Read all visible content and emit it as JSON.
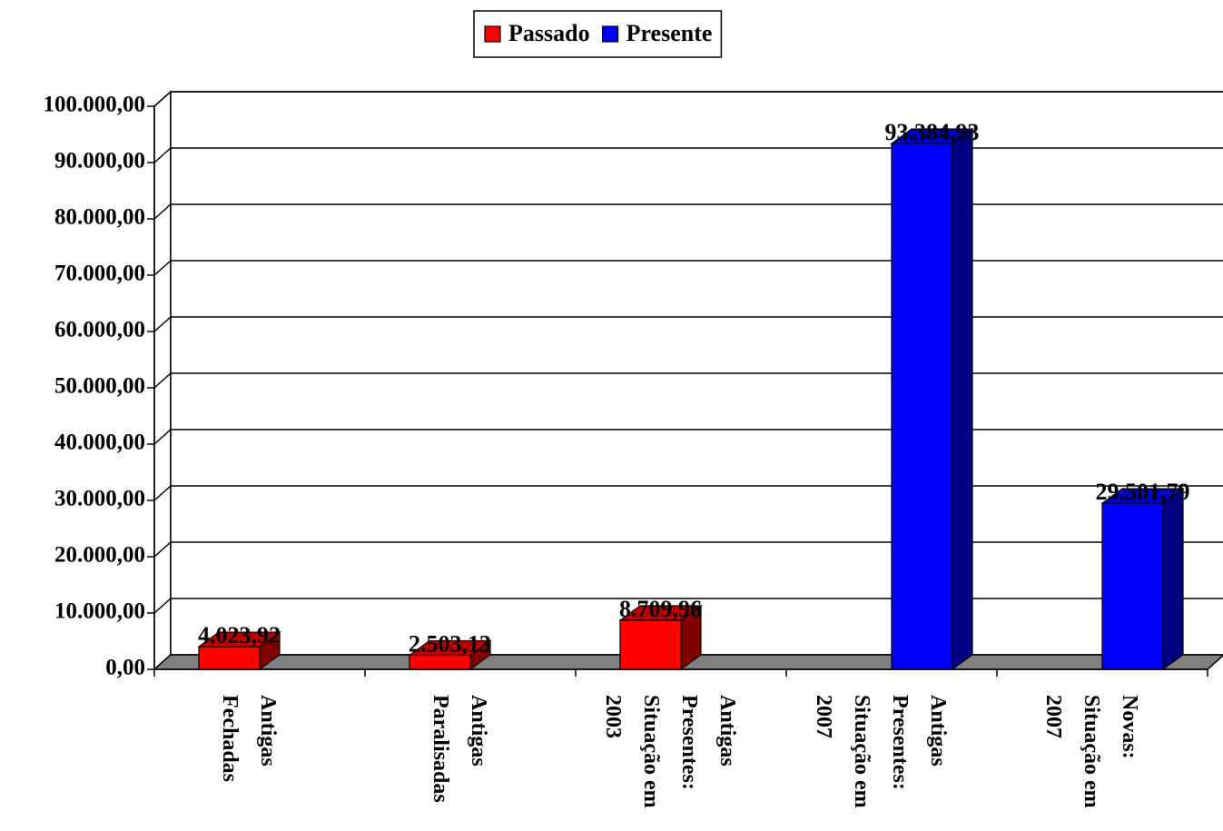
{
  "chart_data": {
    "type": "bar3d",
    "categories": [
      [
        "Antigas",
        "Fechadas"
      ],
      [
        "Antigas",
        "Paralisadas"
      ],
      [
        "Antigas",
        "Presentes:",
        "Situação em",
        "2003"
      ],
      [
        "Antigas",
        "Presentes:",
        "Situação em",
        "2007"
      ],
      [
        "Novas:",
        "Situação em",
        "2007"
      ]
    ],
    "series": [
      {
        "name": "Passado",
        "color": "#ff0000",
        "values": [
          4023.92,
          2503.13,
          8709.96,
          null,
          null
        ],
        "value_labels": [
          "4.023,92",
          "2.503,13",
          "8.709,96",
          null,
          null
        ]
      },
      {
        "name": "Presente",
        "color": "#0000ff",
        "values": [
          null,
          null,
          null,
          93384.93,
          29501.79
        ],
        "value_labels": [
          null,
          null,
          null,
          "93.384,93",
          "29.501,79"
        ]
      }
    ],
    "ylim": [
      0,
      100000
    ],
    "yticks": [
      {
        "value": 0,
        "label": "0,00"
      },
      {
        "value": 10000,
        "label": "10.000,00"
      },
      {
        "value": 20000,
        "label": "20.000,00"
      },
      {
        "value": 30000,
        "label": "30.000,00"
      },
      {
        "value": 40000,
        "label": "40.000,00"
      },
      {
        "value": 50000,
        "label": "50.000,00"
      },
      {
        "value": 60000,
        "label": "60.000,00"
      },
      {
        "value": 70000,
        "label": "70.000,00"
      },
      {
        "value": 80000,
        "label": "80.000,00"
      },
      {
        "value": 90000,
        "label": "90.000,00"
      },
      {
        "value": 100000,
        "label": "100.000,00"
      }
    ],
    "grid": true,
    "legend": "top"
  }
}
